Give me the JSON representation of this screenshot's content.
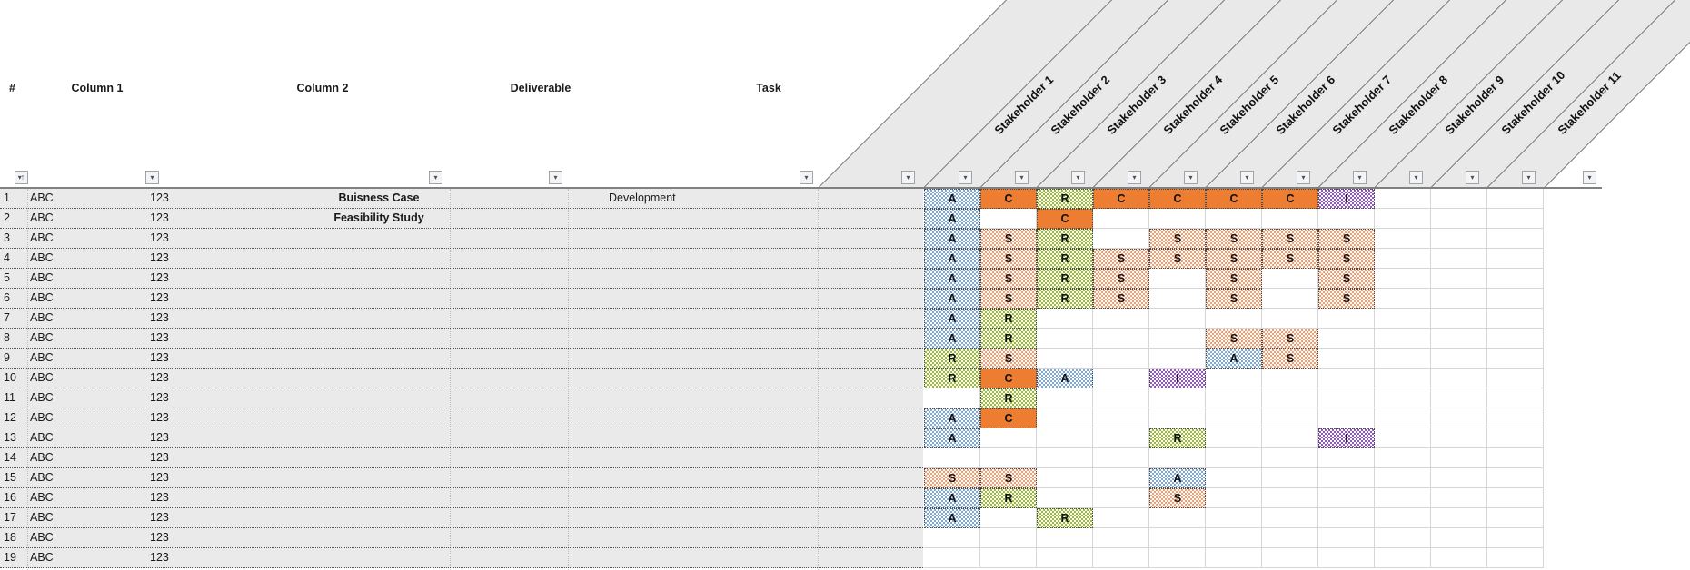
{
  "header": {
    "columns": [
      {
        "label": "#"
      },
      {
        "label": "Column 1"
      },
      {
        "label": "Column 2"
      },
      {
        "label": "Deliverable"
      },
      {
        "label": "Task"
      }
    ],
    "stakeholders": [
      "Stakeholder 1",
      "Stakeholder 2",
      "Stakeholder 3",
      "Stakeholder 4",
      "Stakeholder 5",
      "Stakeholder 6",
      "Stakeholder 7",
      "Stakeholder 8",
      "Stakeholder 9",
      "Stakeholder 10",
      "Stakeholder 11"
    ]
  },
  "filter": {
    "dropdown_icon": "▾",
    "sorted_column_icon": "↑"
  },
  "colors": {
    "accountable_blue": "#7fa9d4",
    "consulted_orange": "#ed7d31",
    "responsible_green": "#9cba3a",
    "support_peach": "#f19e72",
    "informed_purple": "#9055c4",
    "header_band_grey": "#e9e9e9",
    "row_grey": "#eaeaea"
  },
  "rows": [
    {
      "num": "1",
      "col1": "ABC",
      "col2": "123",
      "deliverable": "Buisness Case",
      "task": "Development",
      "cells": [
        "A",
        "C",
        "R",
        "C",
        "C",
        "C",
        "C",
        "I",
        "",
        "",
        ""
      ]
    },
    {
      "num": "2",
      "col1": "ABC",
      "col2": "123",
      "deliverable": "Feasibility Study",
      "task": "",
      "cells": [
        "A",
        "",
        "C",
        "",
        "",
        "",
        "",
        "",
        "",
        "",
        ""
      ]
    },
    {
      "num": "3",
      "col1": "ABC",
      "col2": "123",
      "deliverable": "",
      "task": "",
      "cells": [
        "A",
        "S",
        "R",
        "",
        "S",
        "S",
        "S",
        "S",
        "",
        "",
        ""
      ]
    },
    {
      "num": "4",
      "col1": "ABC",
      "col2": "123",
      "deliverable": "",
      "task": "",
      "cells": [
        "A",
        "S",
        "R",
        "S",
        "S",
        "S",
        "S",
        "S",
        "",
        "",
        ""
      ]
    },
    {
      "num": "5",
      "col1": "ABC",
      "col2": "123",
      "deliverable": "",
      "task": "",
      "cells": [
        "A",
        "S",
        "R",
        "S",
        "",
        "S",
        "",
        "S",
        "",
        "",
        ""
      ]
    },
    {
      "num": "6",
      "col1": "ABC",
      "col2": "123",
      "deliverable": "",
      "task": "",
      "cells": [
        "A",
        "S",
        "R",
        "S",
        "",
        "S",
        "",
        "S",
        "",
        "",
        ""
      ]
    },
    {
      "num": "7",
      "col1": "ABC",
      "col2": "123",
      "deliverable": "",
      "task": "",
      "cells": [
        "A",
        "R",
        "",
        "",
        "",
        "",
        "",
        "",
        "",
        "",
        ""
      ]
    },
    {
      "num": "8",
      "col1": "ABC",
      "col2": "123",
      "deliverable": "",
      "task": "",
      "cells": [
        "A",
        "R",
        "",
        "",
        "",
        "S",
        "S",
        "",
        "",
        "",
        ""
      ]
    },
    {
      "num": "9",
      "col1": "ABC",
      "col2": "123",
      "deliverable": "",
      "task": "",
      "cells": [
        "R",
        "S",
        "",
        "",
        "",
        "A",
        "S",
        "",
        "",
        "",
        ""
      ]
    },
    {
      "num": "10",
      "col1": "ABC",
      "col2": "123",
      "deliverable": "",
      "task": "",
      "cells": [
        "R",
        "C",
        "A",
        "",
        "I",
        "",
        "",
        "",
        "",
        "",
        ""
      ]
    },
    {
      "num": "11",
      "col1": "ABC",
      "col2": "123",
      "deliverable": "",
      "task": "",
      "cells": [
        "",
        "R",
        "",
        "",
        "",
        "",
        "",
        "",
        "",
        "",
        ""
      ]
    },
    {
      "num": "12",
      "col1": "ABC",
      "col2": "123",
      "deliverable": "",
      "task": "",
      "cells": [
        "A",
        "C",
        "",
        "",
        "",
        "",
        "",
        "",
        "",
        "",
        ""
      ]
    },
    {
      "num": "13",
      "col1": "ABC",
      "col2": "123",
      "deliverable": "",
      "task": "",
      "cells": [
        "A",
        "",
        "",
        "",
        "R",
        "",
        "",
        "I",
        "",
        "",
        ""
      ]
    },
    {
      "num": "14",
      "col1": "ABC",
      "col2": "123",
      "deliverable": "",
      "task": "",
      "cells": [
        "",
        "",
        "",
        "",
        "",
        "",
        "",
        "",
        "",
        "",
        ""
      ]
    },
    {
      "num": "15",
      "col1": "ABC",
      "col2": "123",
      "deliverable": "",
      "task": "",
      "cells": [
        "S",
        "S",
        "",
        "",
        "A",
        "",
        "",
        "",
        "",
        "",
        ""
      ]
    },
    {
      "num": "16",
      "col1": "ABC",
      "col2": "123",
      "deliverable": "",
      "task": "",
      "cells": [
        "A",
        "R",
        "",
        "",
        "S",
        "",
        "",
        "",
        "",
        "",
        ""
      ]
    },
    {
      "num": "17",
      "col1": "ABC",
      "col2": "123",
      "deliverable": "",
      "task": "",
      "cells": [
        "A",
        "",
        "R",
        "",
        "",
        "",
        "",
        "",
        "",
        "",
        ""
      ]
    },
    {
      "num": "18",
      "col1": "ABC",
      "col2": "123",
      "deliverable": "",
      "task": "",
      "cells": [
        "",
        "",
        "",
        "",
        "",
        "",
        "",
        "",
        "",
        "",
        ""
      ]
    },
    {
      "num": "19",
      "col1": "ABC",
      "col2": "123",
      "deliverable": "",
      "task": "",
      "cells": [
        "",
        "",
        "",
        "",
        "",
        "",
        "",
        "",
        "",
        "",
        ""
      ]
    }
  ]
}
